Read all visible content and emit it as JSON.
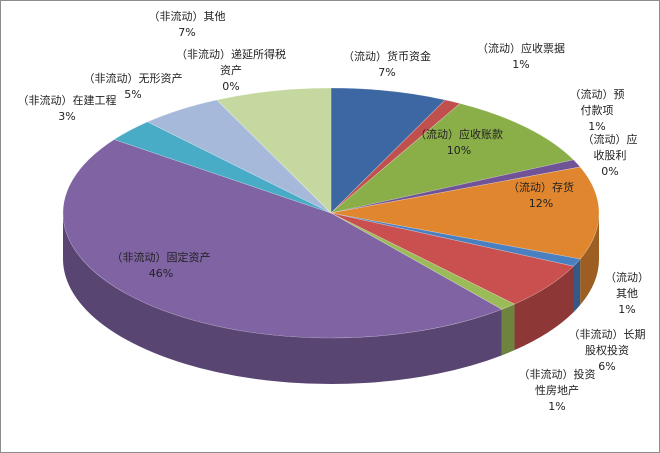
{
  "chart_data": {
    "type": "pie3d",
    "categories": [
      "（流动）货币资金",
      "（流动）应收票据",
      "（流动）应收账款",
      "（流动）预付款项",
      "（流动）应收股利",
      "（流动）存货",
      "（流动）其他",
      "（非流动）长期股权投资",
      "（非流动）投资性房地产",
      "（非流动）固定资产",
      "（非流动）在建工程",
      "（非流动）无形资产",
      "（非流动）递延所得税资产",
      "（非流动）其他"
    ],
    "values": [
      7,
      1,
      10,
      1,
      0,
      12,
      1,
      6,
      1,
      46,
      3,
      5,
      0,
      7
    ],
    "value_labels": [
      "7%",
      "1%",
      "10%",
      "1%",
      "0%",
      "12%",
      "1%",
      "6%",
      "1%",
      "46%",
      "3%",
      "5%",
      "0%",
      "7%"
    ],
    "colors": [
      "#3c67a3",
      "#c0504d",
      "#8aae48",
      "#6f5396",
      "#4f81bd",
      "#e0862f",
      "#4a7fc0",
      "#c9504e",
      "#9bbb59",
      "#7f63a2",
      "#48acc6",
      "#a6b9db",
      "#e8a8a0",
      "#c5d8a0"
    ]
  }
}
